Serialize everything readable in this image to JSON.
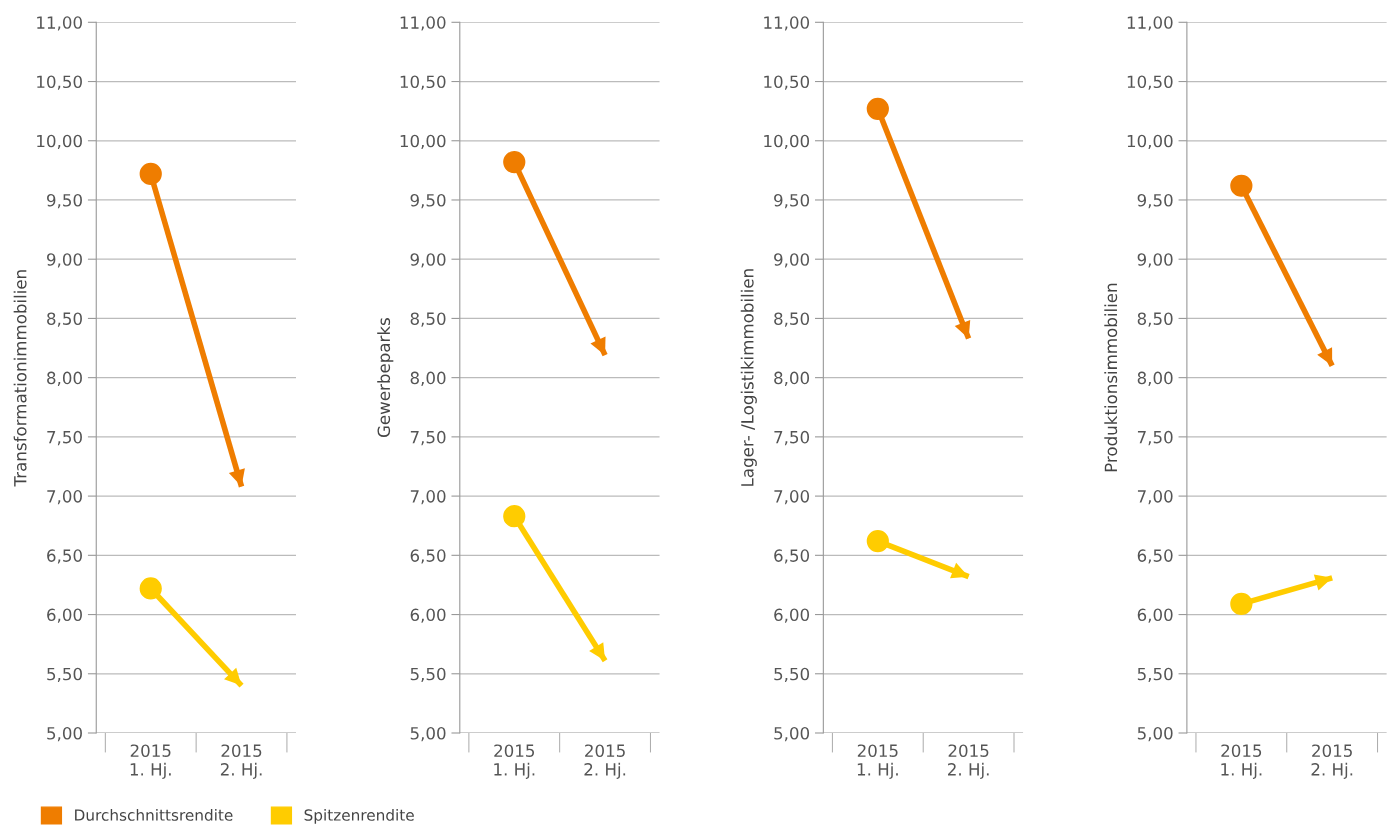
{
  "chart_data": [
    {
      "type": "line",
      "ylabel": "Transformationimmobilien",
      "categories": [
        "2015\n1. Hj.",
        "2015\n2. Hj."
      ],
      "ylim": [
        5,
        11
      ],
      "yticks": [
        {
          "value": 5,
          "label": "5,00"
        },
        {
          "value": 5.5,
          "label": "5,50"
        },
        {
          "value": 6,
          "label": "6,00"
        },
        {
          "value": 6.5,
          "label": "6,50"
        },
        {
          "value": 7,
          "label": "7,00"
        },
        {
          "value": 7.5,
          "label": "7,50"
        },
        {
          "value": 8,
          "label": "8,00"
        },
        {
          "value": 8.5,
          "label": "8,50"
        },
        {
          "value": 9,
          "label": "9,00"
        },
        {
          "value": 9.5,
          "label": "9,50"
        },
        {
          "value": 10,
          "label": "10,00"
        },
        {
          "value": 10.5,
          "label": "10,50"
        },
        {
          "value": 11,
          "label": "11,00"
        }
      ],
      "grid": "y",
      "marker": "circle",
      "legend": "bottom",
      "series": [
        {
          "name": "Durchschnittsrendite",
          "color": "#ef7d00",
          "values": [
            9.72,
            7.08
          ]
        },
        {
          "name": "Spitzenrendite",
          "color": "#ffcc00",
          "values": [
            6.22,
            5.4
          ]
        }
      ]
    },
    {
      "type": "line",
      "ylabel": "Gewerbeparks",
      "categories": [
        "2015\n1. Hj.",
        "2015\n2. Hj."
      ],
      "ylim": [
        5,
        11
      ],
      "yticks": [
        {
          "value": 5,
          "label": "5,00"
        },
        {
          "value": 5.5,
          "label": "5,50"
        },
        {
          "value": 6,
          "label": "6,00"
        },
        {
          "value": 6.5,
          "label": "6,50"
        },
        {
          "value": 7,
          "label": "7,00"
        },
        {
          "value": 7.5,
          "label": "7,50"
        },
        {
          "value": 8,
          "label": "8,00"
        },
        {
          "value": 8.5,
          "label": "8,50"
        },
        {
          "value": 9,
          "label": "9,00"
        },
        {
          "value": 9.5,
          "label": "9,50"
        },
        {
          "value": 10,
          "label": "10,00"
        },
        {
          "value": 10.5,
          "label": "10,50"
        },
        {
          "value": 11,
          "label": "11,00"
        }
      ],
      "grid": "y",
      "marker": "circle",
      "series": [
        {
          "color": "#ef7d00",
          "values": [
            9.82,
            8.19
          ]
        },
        {
          "color": "#ffcc00",
          "values": [
            6.83,
            5.61
          ]
        }
      ]
    },
    {
      "type": "line",
      "ylabel": "Lager- /Logistikimmobilien",
      "categories": [
        "2015\n1. Hj.",
        "2015\n2. Hj."
      ],
      "ylim": [
        5,
        11
      ],
      "yticks": [
        {
          "value": 5,
          "label": "5,00"
        },
        {
          "value": 5.5,
          "label": "5,50"
        },
        {
          "value": 6,
          "label": "6,00"
        },
        {
          "value": 6.5,
          "label": "6,50"
        },
        {
          "value": 7,
          "label": "7,00"
        },
        {
          "value": 7.5,
          "label": "7,50"
        },
        {
          "value": 8,
          "label": "8,00"
        },
        {
          "value": 8.5,
          "label": "8,50"
        },
        {
          "value": 9,
          "label": "9,00"
        },
        {
          "value": 9.5,
          "label": "9,50"
        },
        {
          "value": 10,
          "label": "10,00"
        },
        {
          "value": 10.5,
          "label": "10,50"
        },
        {
          "value": 11,
          "label": "11,00"
        }
      ],
      "grid": "y",
      "marker": "circle",
      "series": [
        {
          "color": "#ef7d00",
          "values": [
            10.27,
            8.33
          ]
        },
        {
          "color": "#ffcc00",
          "values": [
            6.62,
            6.32
          ]
        }
      ]
    },
    {
      "type": "line",
      "ylabel": "Produktionsimmobilien",
      "categories": [
        "2015\n1. Hj.",
        "2015\n2. Hj."
      ],
      "ylim": [
        5,
        11
      ],
      "yticks": [
        {
          "value": 5,
          "label": "5,00"
        },
        {
          "value": 5.5,
          "label": "5,50"
        },
        {
          "value": 6,
          "label": "6,00"
        },
        {
          "value": 6.5,
          "label": "6,50"
        },
        {
          "value": 7,
          "label": "7,00"
        },
        {
          "value": 7.5,
          "label": "7,50"
        },
        {
          "value": 8,
          "label": "8,00"
        },
        {
          "value": 8.5,
          "label": "8,50"
        },
        {
          "value": 9,
          "label": "9,00"
        },
        {
          "value": 9.5,
          "label": "9,50"
        },
        {
          "value": 10,
          "label": "10,00"
        },
        {
          "value": 10.5,
          "label": "10,50"
        },
        {
          "value": 11,
          "label": "11,00"
        }
      ],
      "grid": "y",
      "marker": "circle",
      "series": [
        {
          "color": "#ef7d00",
          "values": [
            9.62,
            8.1
          ]
        },
        {
          "color": "#ffcc00",
          "values": [
            6.09,
            6.31
          ]
        }
      ]
    }
  ]
}
